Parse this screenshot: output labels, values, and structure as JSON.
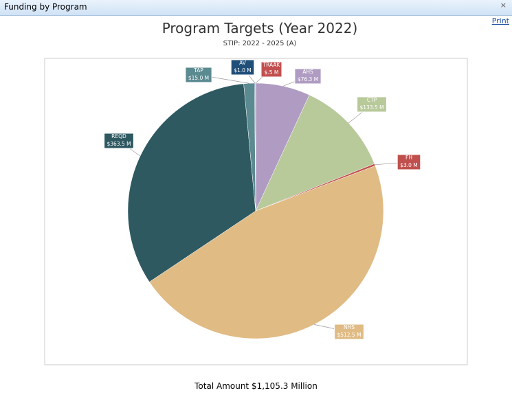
{
  "window": {
    "title": "Funding by Program",
    "close": "×",
    "print": "Print"
  },
  "chart_data": {
    "type": "pie",
    "title": "Program Targets (Year 2022)",
    "subtitle": "STIP: 2022 - 2025 (A)",
    "categories": [
      "AHS",
      "CTP",
      "FH",
      "NHS",
      "REQD",
      "TAP",
      "AV",
      "TRAAK"
    ],
    "values": [
      76.3,
      133.5,
      3.0,
      512.5,
      363.5,
      15.0,
      1.0,
      0.5
    ],
    "value_labels": [
      "$76.3 M",
      "$133.5 M",
      "$3.0 M",
      "$512.5 M",
      "$363.5 M",
      "$15.0 M",
      "$1.0 M",
      "$.5 M"
    ],
    "colors": [
      "#b09cc2",
      "#b8c99a",
      "#c0504d",
      "#e0bb84",
      "#2e5961",
      "#5b8a91",
      "#1f4e79",
      "#c24f4f"
    ]
  },
  "footer": {
    "total": "Total Amount $1,105.3 Million"
  }
}
